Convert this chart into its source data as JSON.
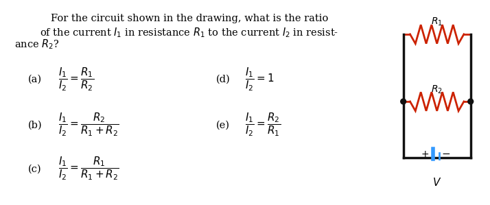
{
  "bg_color": "#ffffff",
  "fig_width": 7.14,
  "fig_height": 2.99,
  "question_line1": "For the circuit shown in the drawing, what is the ratio",
  "question_line2": "of the current $I_1$ in resistance $R_1$ to the current $I_2$ in resist-",
  "question_line3": "ance $R_2$?",
  "opt_a_label": "(a)",
  "opt_a_math": "$\\dfrac{I_1}{I_2} = \\dfrac{R_1}{R_2}$",
  "opt_b_label": "(b)",
  "opt_b_math": "$\\dfrac{I_1}{I_2} = \\dfrac{R_2}{R_1 + R_2}$",
  "opt_c_label": "(c)",
  "opt_c_math": "$\\dfrac{I_1}{I_2} = \\dfrac{R_1}{R_1 + R_2}$",
  "opt_d_label": "(d)",
  "opt_d_math": "$\\dfrac{I_1}{I_2} = 1$",
  "opt_e_label": "(e)",
  "opt_e_math": "$\\dfrac{I_1}{I_2} = \\dfrac{R_2}{R_1}$",
  "r1_label": "$R_1$",
  "r2_label": "$R_2$",
  "v_label": "$V$",
  "resistor_color": "#cc2200",
  "wire_color": "#111111",
  "battery_color": "#3399ff",
  "dot_color": "#111111"
}
